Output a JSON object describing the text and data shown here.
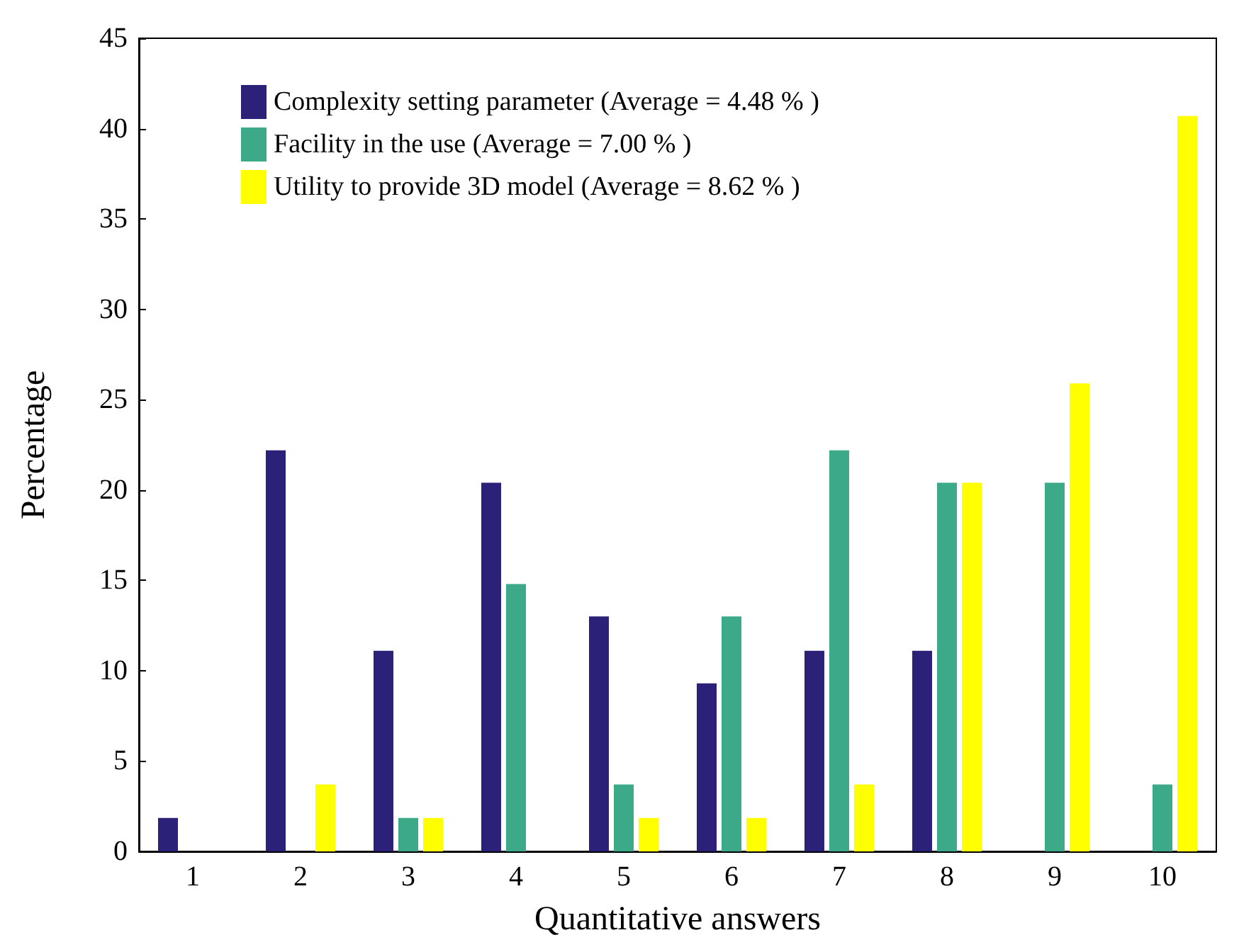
{
  "chart_data": {
    "type": "bar",
    "xlabel": "Quantitative answers",
    "ylabel": "Percentage",
    "categories": [
      "1",
      "2",
      "3",
      "4",
      "5",
      "6",
      "7",
      "8",
      "9",
      "10"
    ],
    "series": [
      {
        "name": "Complexity setting parameter (Average = 4.48 % )",
        "color": "#2b2178",
        "values": [
          1.85,
          22.2,
          11.1,
          20.4,
          13.0,
          9.3,
          11.1,
          11.1,
          0,
          0
        ]
      },
      {
        "name": "Facility in the use (Average = 7.00 % )",
        "color": "#3caa88",
        "values": [
          0,
          0,
          1.85,
          14.8,
          3.7,
          13.0,
          22.2,
          20.4,
          20.4,
          3.7
        ]
      },
      {
        "name": "Utility to provide 3D model (Average = 8.62 % )",
        "color": "#ffff00",
        "values": [
          0,
          3.7,
          1.85,
          0,
          1.85,
          1.85,
          3.7,
          20.4,
          25.9,
          40.7
        ]
      }
    ],
    "ylim": [
      0,
      45
    ],
    "yticks": [
      0,
      5,
      10,
      15,
      20,
      25,
      30,
      35,
      40,
      45
    ],
    "grid": false,
    "legend": "top left"
  }
}
